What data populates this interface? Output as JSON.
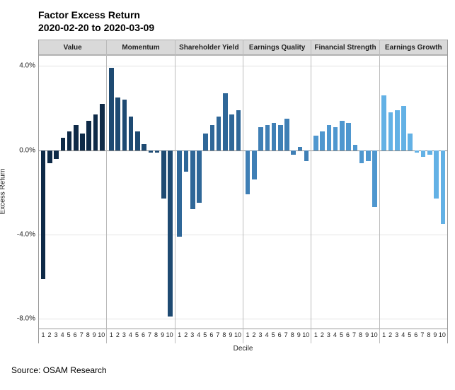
{
  "title_line1": "Factor Excess Return",
  "title_line2": "2020-02-20 to 2020-03-09",
  "y_axis_label": "Excess Return",
  "x_axis_label": "Decile",
  "source_text": "Source: OSAM Research",
  "ylim_min": -8.5,
  "ylim_max": 4.5,
  "y_ticks": [
    {
      "value": 4.0,
      "label": "4.0%"
    },
    {
      "value": 0.0,
      "label": "0.0%"
    },
    {
      "value": -4.0,
      "label": "-4.0%"
    },
    {
      "value": -8.0,
      "label": "-8.0%"
    }
  ],
  "x_categories": [
    "1",
    "2",
    "3",
    "4",
    "5",
    "6",
    "7",
    "8",
    "9",
    "10"
  ],
  "background_color": "#ffffff",
  "grid_color": "#e3e3e3",
  "header_bg": "#d9d9d9",
  "panels": [
    {
      "label": "Value",
      "color": "#0e2a47",
      "values": [
        -6.1,
        -0.6,
        -0.4,
        0.6,
        0.9,
        1.2,
        0.8,
        1.4,
        1.7,
        2.2
      ]
    },
    {
      "label": "Momentum",
      "color": "#1e4a72",
      "values": [
        3.9,
        2.5,
        2.4,
        1.6,
        0.9,
        0.3,
        -0.1,
        -0.1,
        -2.3,
        -7.9
      ]
    },
    {
      "label": "Shareholder Yield",
      "color": "#2f6798",
      "values": [
        -4.1,
        -1.0,
        -2.8,
        -2.5,
        0.8,
        1.2,
        1.6,
        2.7,
        1.7,
        1.9
      ]
    },
    {
      "label": "Earnings Quality",
      "color": "#3f7fb5",
      "values": [
        -2.1,
        -1.4,
        1.1,
        1.2,
        1.3,
        1.2,
        1.5,
        -0.2,
        0.15,
        -0.5
      ]
    },
    {
      "label": "Financial Strength",
      "color": "#4f97cf",
      "values": [
        0.7,
        0.9,
        1.2,
        1.1,
        1.4,
        1.3,
        0.25,
        -0.6,
        -0.5,
        -2.7
      ]
    },
    {
      "label": "Earnings Growth",
      "color": "#63b1e5",
      "values": [
        2.6,
        1.8,
        1.9,
        2.1,
        0.8,
        -0.1,
        -0.3,
        -0.2,
        -2.3,
        -3.5
      ]
    }
  ]
}
